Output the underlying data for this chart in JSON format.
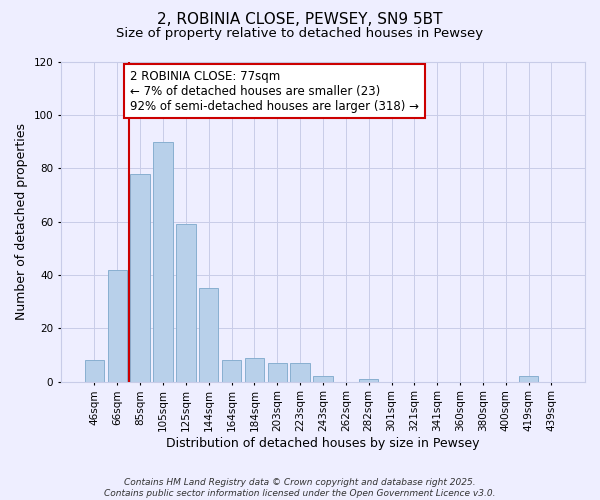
{
  "title_line1": "2, ROBINIA CLOSE, PEWSEY, SN9 5BT",
  "title_line2": "Size of property relative to detached houses in Pewsey",
  "xlabel": "Distribution of detached houses by size in Pewsey",
  "ylabel": "Number of detached properties",
  "categories": [
    "46sqm",
    "66sqm",
    "85sqm",
    "105sqm",
    "125sqm",
    "144sqm",
    "164sqm",
    "184sqm",
    "203sqm",
    "223sqm",
    "243sqm",
    "262sqm",
    "282sqm",
    "301sqm",
    "321sqm",
    "341sqm",
    "360sqm",
    "380sqm",
    "400sqm",
    "419sqm",
    "439sqm"
  ],
  "values": [
    8,
    42,
    78,
    90,
    59,
    35,
    8,
    9,
    7,
    7,
    2,
    0,
    1,
    0,
    0,
    0,
    0,
    0,
    0,
    2,
    0
  ],
  "bar_color": "#b8d0ea",
  "bar_edge_color": "#88afd0",
  "vline_color": "#cc0000",
  "vline_x_index": 1.5,
  "annotation_line1": "2 ROBINIA CLOSE: 77sqm",
  "annotation_line2": "← 7% of detached houses are smaller (23)",
  "annotation_line3": "92% of semi-detached houses are larger (318) →",
  "annotation_box_facecolor": "#ffffff",
  "annotation_box_edgecolor": "#cc0000",
  "ylim": [
    0,
    120
  ],
  "yticks": [
    0,
    20,
    40,
    60,
    80,
    100,
    120
  ],
  "footnote_line1": "Contains HM Land Registry data © Crown copyright and database right 2025.",
  "footnote_line2": "Contains public sector information licensed under the Open Government Licence v3.0.",
  "background_color": "#eeeeff",
  "grid_color": "#c8cce8",
  "title_fontsize": 11,
  "subtitle_fontsize": 9.5,
  "axis_label_fontsize": 9,
  "tick_fontsize": 7.5,
  "annotation_fontsize": 8.5,
  "footnote_fontsize": 6.5
}
